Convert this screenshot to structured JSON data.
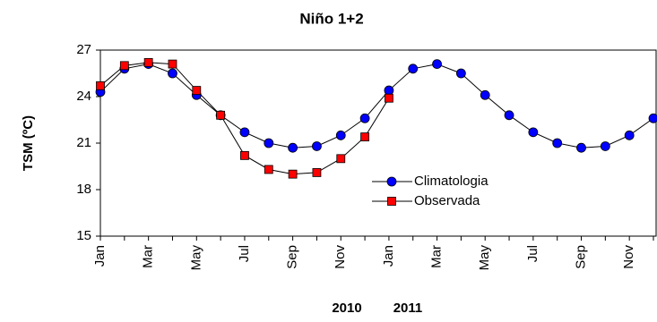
{
  "chart_data": {
    "type": "line",
    "title": "Niño 1+2",
    "y_label": "TSM (ºC)",
    "categories": [
      "Jan",
      null,
      "Mar",
      null,
      "May",
      null,
      "Jul",
      null,
      "Sep",
      null,
      "Nov",
      null,
      "Jan",
      null,
      "Mar",
      null,
      "May",
      null,
      "Jul",
      null,
      "Sep",
      null,
      "Nov",
      null
    ],
    "years": [
      "2010",
      "2011"
    ],
    "series": [
      {
        "name": "Climatologia",
        "color": "#0000ff",
        "marker": "circle",
        "values": [
          24.3,
          25.8,
          26.1,
          25.5,
          24.1,
          22.8,
          21.7,
          21.0,
          20.7,
          20.8,
          21.5,
          22.6,
          24.4,
          25.8,
          26.1,
          25.5,
          24.1,
          22.8,
          21.7,
          21.0,
          20.7,
          20.8,
          21.5,
          22.6
        ]
      },
      {
        "name": "Observada",
        "color": "#ff0000",
        "marker": "square",
        "values": [
          24.7,
          26.0,
          26.2,
          26.1,
          24.4,
          22.8,
          20.2,
          19.3,
          19.0,
          19.1,
          20.0,
          21.4,
          23.9,
          null,
          null,
          null,
          null,
          null,
          null,
          null,
          null,
          null,
          null,
          null
        ]
      }
    ],
    "ylim": [
      15,
      27
    ],
    "yticks": [
      15,
      18,
      21,
      24,
      27
    ],
    "grid": false
  }
}
